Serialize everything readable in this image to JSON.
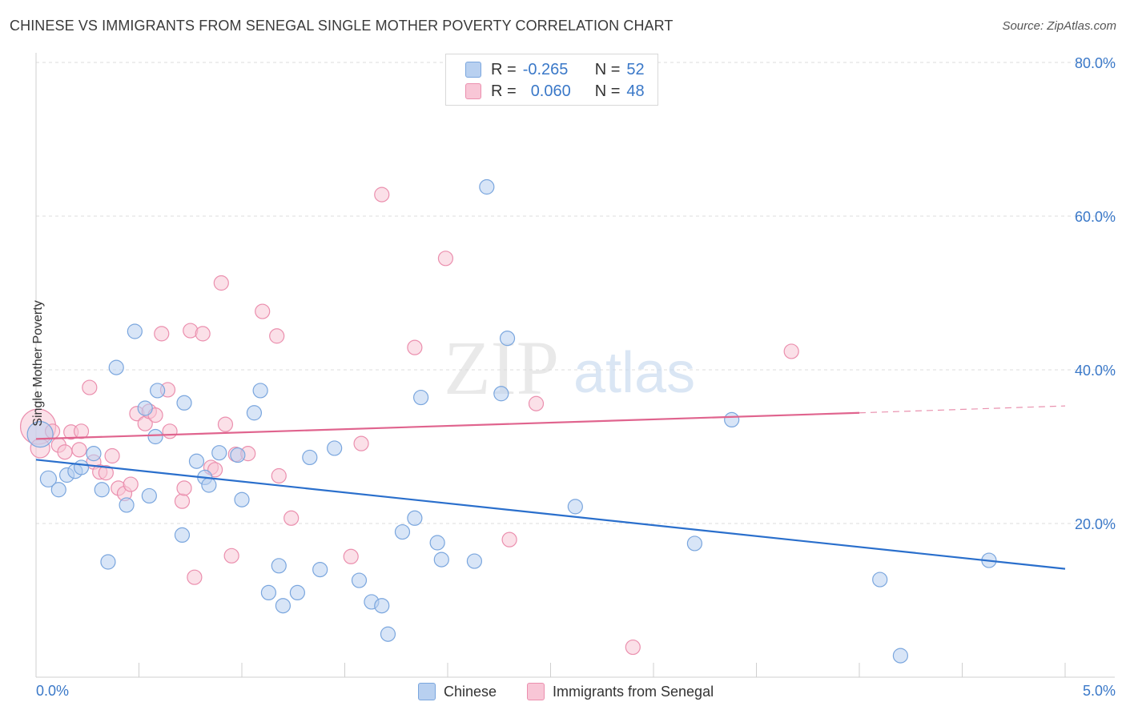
{
  "header": {
    "title": "CHINESE VS IMMIGRANTS FROM SENEGAL SINGLE MOTHER POVERTY CORRELATION CHART",
    "source": "Source: ZipAtlas.com"
  },
  "legend_box": {
    "series1": {
      "r_label": "R =",
      "r_value": "-0.265",
      "n_label": "N =",
      "n_value": "52"
    },
    "series2": {
      "r_label": "R =",
      "r_value": "0.060",
      "n_label": "N =",
      "n_value": "48"
    }
  },
  "watermark": {
    "part1": "ZIP",
    "part2": "atlas"
  },
  "colors": {
    "blue_fill": "#b8d0f0",
    "blue_stroke": "#7aa6de",
    "blue_line": "#2a6fcc",
    "pink_fill": "#f8c6d6",
    "pink_stroke": "#eb8fae",
    "pink_line": "#e0648e",
    "tick_label": "#3a78c8",
    "grid": "#dedede"
  },
  "chart_data": {
    "type": "scatter",
    "title": "CHINESE VS IMMIGRANTS FROM SENEGAL SINGLE MOTHER POVERTY CORRELATION CHART",
    "xlabel": "",
    "ylabel": "Single Mother Poverty",
    "xlim": [
      0,
      5
    ],
    "ylim": [
      0,
      80
    ],
    "x_tick_labels": [
      "0.0%",
      "5.0%"
    ],
    "y_ticks": [
      20,
      40,
      60,
      80
    ],
    "y_tick_labels": [
      "20.0%",
      "40.0%",
      "60.0%",
      "80.0%"
    ],
    "grid": true,
    "legend_position": "bottom",
    "series": [
      {
        "name": "Chinese",
        "color": "#7aa6de",
        "regression": {
          "x": [
            0,
            5
          ],
          "y": [
            28.3,
            14.1
          ]
        },
        "points": [
          [
            0.02,
            31.6,
            16
          ],
          [
            0.06,
            25.8,
            10
          ],
          [
            0.11,
            24.4,
            9
          ],
          [
            0.15,
            26.3,
            9
          ],
          [
            0.19,
            26.8,
            9
          ],
          [
            0.22,
            27.3,
            9
          ],
          [
            0.28,
            29.1,
            9
          ],
          [
            0.32,
            24.4,
            9
          ],
          [
            0.35,
            15.0,
            9
          ],
          [
            0.39,
            40.3,
            9
          ],
          [
            0.44,
            22.4,
            9
          ],
          [
            0.48,
            45.0,
            9
          ],
          [
            0.53,
            35.0,
            9
          ],
          [
            0.55,
            23.6,
            9
          ],
          [
            0.58,
            31.3,
            9
          ],
          [
            0.59,
            37.3,
            9
          ],
          [
            0.71,
            18.5,
            9
          ],
          [
            0.72,
            35.7,
            9
          ],
          [
            0.78,
            28.1,
            9
          ],
          [
            0.82,
            26.0,
            9
          ],
          [
            0.84,
            25.0,
            9
          ],
          [
            0.89,
            29.2,
            9
          ],
          [
            0.98,
            28.9,
            9
          ],
          [
            1.0,
            23.1,
            9
          ],
          [
            1.06,
            34.4,
            9
          ],
          [
            1.09,
            37.3,
            9
          ],
          [
            1.13,
            11.0,
            9
          ],
          [
            1.18,
            14.5,
            9
          ],
          [
            1.2,
            9.3,
            9
          ],
          [
            1.27,
            11.0,
            9
          ],
          [
            1.33,
            28.6,
            9
          ],
          [
            1.38,
            14.0,
            9
          ],
          [
            1.45,
            29.8,
            9
          ],
          [
            1.57,
            12.6,
            9
          ],
          [
            1.63,
            9.8,
            9
          ],
          [
            1.68,
            9.3,
            9
          ],
          [
            1.71,
            5.6,
            9
          ],
          [
            1.78,
            18.9,
            9
          ],
          [
            1.84,
            20.7,
            9
          ],
          [
            1.87,
            36.4,
            9
          ],
          [
            1.95,
            17.5,
            9
          ],
          [
            1.97,
            15.3,
            9
          ],
          [
            2.13,
            15.1,
            9
          ],
          [
            2.19,
            63.8,
            9
          ],
          [
            2.26,
            36.9,
            9
          ],
          [
            2.29,
            44.1,
            9
          ],
          [
            2.62,
            22.2,
            9
          ],
          [
            3.2,
            17.4,
            9
          ],
          [
            3.38,
            33.5,
            9
          ],
          [
            4.1,
            12.7,
            9
          ],
          [
            4.2,
            2.8,
            9
          ],
          [
            4.63,
            15.2,
            9
          ]
        ]
      },
      {
        "name": "Immigrants from Senegal",
        "color": "#eb8fae",
        "regression": {
          "x": [
            0,
            4.0
          ],
          "y": [
            31.0,
            34.4
          ]
        },
        "regression_extension": {
          "x": [
            4.0,
            5.0
          ],
          "y": [
            34.4,
            35.3
          ]
        },
        "points": [
          [
            0.01,
            32.6,
            22
          ],
          [
            0.02,
            29.8,
            12
          ],
          [
            0.08,
            32.0,
            9
          ],
          [
            0.11,
            30.2,
            9
          ],
          [
            0.14,
            29.3,
            9
          ],
          [
            0.17,
            31.9,
            9
          ],
          [
            0.21,
            29.6,
            9
          ],
          [
            0.22,
            32.0,
            9
          ],
          [
            0.26,
            37.7,
            9
          ],
          [
            0.28,
            28.0,
            9
          ],
          [
            0.31,
            26.7,
            9
          ],
          [
            0.34,
            26.6,
            9
          ],
          [
            0.37,
            28.8,
            9
          ],
          [
            0.4,
            24.6,
            9
          ],
          [
            0.43,
            23.9,
            9
          ],
          [
            0.46,
            25.1,
            9
          ],
          [
            0.49,
            34.3,
            9
          ],
          [
            0.53,
            33.0,
            9
          ],
          [
            0.55,
            34.6,
            9
          ],
          [
            0.58,
            34.1,
            9
          ],
          [
            0.61,
            44.7,
            9
          ],
          [
            0.64,
            37.4,
            9
          ],
          [
            0.65,
            32.0,
            9
          ],
          [
            0.71,
            22.9,
            9
          ],
          [
            0.72,
            24.6,
            9
          ],
          [
            0.75,
            45.1,
            9
          ],
          [
            0.77,
            13.0,
            9
          ],
          [
            0.81,
            44.7,
            9
          ],
          [
            0.85,
            27.3,
            9
          ],
          [
            0.87,
            27.0,
            9
          ],
          [
            0.9,
            51.3,
            9
          ],
          [
            0.92,
            32.9,
            9
          ],
          [
            0.95,
            15.8,
            9
          ],
          [
            0.97,
            29.0,
            9
          ],
          [
            1.03,
            29.1,
            9
          ],
          [
            1.1,
            47.6,
            9
          ],
          [
            1.17,
            44.4,
            9
          ],
          [
            1.18,
            26.2,
            9
          ],
          [
            1.24,
            20.7,
            9
          ],
          [
            1.53,
            15.7,
            9
          ],
          [
            1.58,
            30.4,
            9
          ],
          [
            1.68,
            62.8,
            9
          ],
          [
            1.84,
            42.9,
            9
          ],
          [
            1.99,
            54.5,
            9
          ],
          [
            2.3,
            17.9,
            9
          ],
          [
            2.43,
            35.6,
            9
          ],
          [
            2.9,
            3.9,
            9
          ],
          [
            3.67,
            42.4,
            9
          ]
        ]
      }
    ]
  }
}
